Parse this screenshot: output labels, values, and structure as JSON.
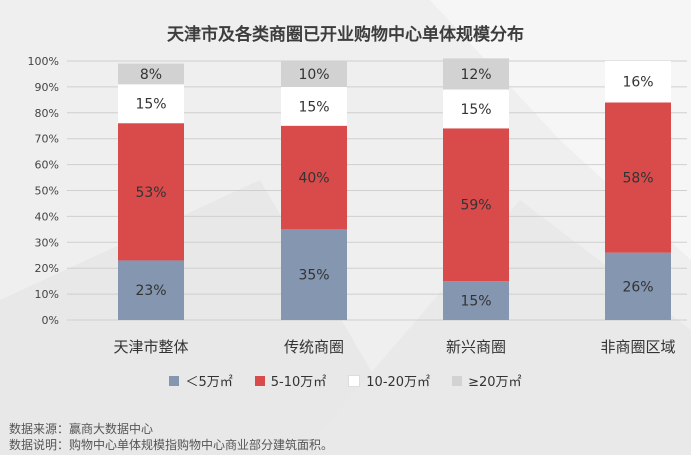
{
  "title": "天津市及各类商圈已开业购物中心单体规模分布",
  "chart_data": {
    "type": "bar",
    "stacked": true,
    "percent": true,
    "categories": [
      "天津市整体",
      "传统商圈",
      "新兴商圈",
      "非商圈区域"
    ],
    "series": [
      {
        "name": "＜5万㎡",
        "color": "#8496b0",
        "values": [
          23,
          35,
          15,
          26
        ]
      },
      {
        "name": "5-10万㎡",
        "color": "#d94b4b",
        "values": [
          53,
          40,
          59,
          58
        ]
      },
      {
        "name": "10-20万㎡",
        "color": "#ffffff",
        "values": [
          15,
          15,
          15,
          16
        ]
      },
      {
        "name": "≥20万㎡",
        "color": "#d2d2d2",
        "values": [
          8,
          10,
          12,
          0
        ]
      }
    ],
    "yticks": [
      "0%",
      "10%",
      "20%",
      "30%",
      "40%",
      "50%",
      "60%",
      "70%",
      "80%",
      "90%",
      "100%"
    ],
    "ylim": [
      0,
      100
    ],
    "grid": true,
    "legend_position": "bottom"
  },
  "footer": {
    "source": "数据来源：赢商大数据中心",
    "note": "数据说明：购物中心单体规模指购物中心商业部分建筑面积。"
  }
}
